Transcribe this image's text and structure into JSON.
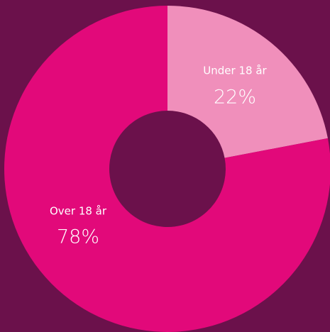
{
  "chart_data": {
    "type": "donut",
    "categories": [
      "Under 18 år",
      "Over 18 år"
    ],
    "values": [
      22,
      78
    ],
    "value_labels": [
      "22%",
      "78%"
    ],
    "colors": [
      "#f08fbb",
      "#e2097a"
    ]
  }
}
